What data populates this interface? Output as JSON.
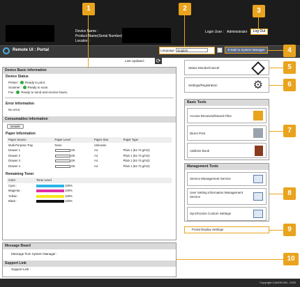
{
  "header": {
    "device_name_label": "Device Name :",
    "product_name_label": "Product Name(Serial Number) :",
    "location_label": "Location :",
    "login_user_label": "Login User :",
    "login_user_value": "Administrator",
    "logout_label": "Log Out"
  },
  "titlebar": {
    "title": "Remote UI : Portal",
    "language_label": "Language",
    "language_value": "English",
    "email_label": "E-Mail to System Manager"
  },
  "main": {
    "last_updated_label": "Last Updated :",
    "device_basic": {
      "title": "Device Basic Information",
      "status_title": "Device Status",
      "status": [
        {
          "label": "Printer :",
          "value": "Ready to print."
        },
        {
          "label": "Scanner :",
          "value": "Ready to scan."
        },
        {
          "label": "Fax :",
          "value": "Ready to send and receive faxes."
        }
      ],
      "error_title": "Error Information",
      "error_value": "No error."
    },
    "consumables": {
      "title": "Consumables Information",
      "details_label": "Details",
      "paper_title": "Paper Information",
      "paper_headers": [
        "Paper Source",
        "Paper Level",
        "Paper Size",
        "Paper Type"
      ],
      "paper_rows": [
        {
          "source": "Multi-Purpose Tray",
          "level": "None",
          "size": "Unknown",
          "type": ""
        },
        {
          "source": "Drawer 1",
          "level": "OK",
          "size": "A4",
          "type": "Plain 1 (61-74 g/m2)"
        },
        {
          "source": "Drawer 2",
          "level": "OK",
          "size": "A4",
          "type": "Plain 1 (61-74 g/m2)"
        },
        {
          "source": "Drawer 3",
          "level": "OK",
          "size": "A4",
          "type": "Plain 1 (61-74 g/m2)"
        },
        {
          "source": "Drawer 4",
          "level": "OK",
          "size": "A4",
          "type": "Plain 1 (61-74 g/m2)"
        }
      ],
      "toner_title": "Remaining Toner",
      "toner_headers": [
        "Color",
        "Toner Level"
      ],
      "toner": [
        {
          "color": "Cyan :",
          "pct": "100%",
          "hex": "#2bb5e8"
        },
        {
          "color": "Magenta :",
          "pct": "100%",
          "hex": "#e02fa6"
        },
        {
          "color": "Yellow :",
          "pct": "100%",
          "hex": "#f5e61a"
        },
        {
          "color": "Black :",
          "pct": "100%",
          "hex": "#111111"
        }
      ]
    },
    "message_board": {
      "title": "Message Board",
      "text": "Message from System Manager :"
    },
    "support": {
      "title": "Support Link",
      "text": "Support Link :"
    }
  },
  "right": {
    "status_monitor": "Status Monitor/Cancel",
    "settings": "Settings/Registration",
    "basic_tools_title": "Basic Tools",
    "basic_tools": [
      "Access Received/Stored Files",
      "Direct Print",
      "Address Book"
    ],
    "mgmt_title": "Management Tools",
    "mgmt_tools": [
      "Service Management Service",
      "User Setting Information Management Service",
      "Synchronize Custom Settings"
    ],
    "portal_display": "Portal Display Settings"
  },
  "footer": {
    "copyright": "Copyright CANON INC. 2020"
  },
  "callouts": [
    "1",
    "2",
    "3",
    "4",
    "5",
    "6",
    "7",
    "8",
    "9",
    "10"
  ]
}
